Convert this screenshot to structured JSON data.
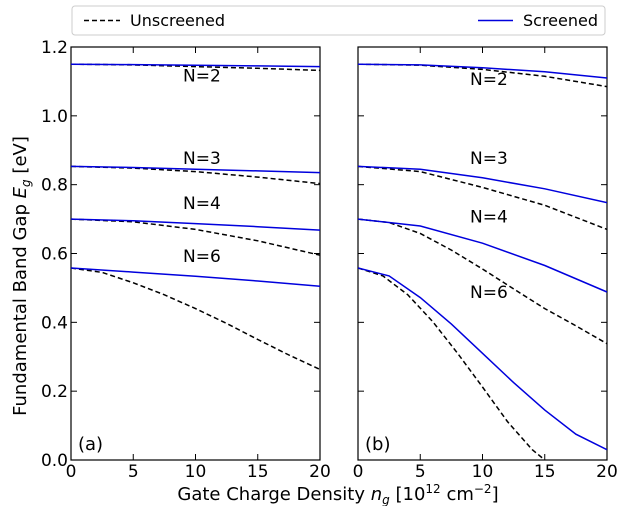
{
  "chart_data": {
    "type": "line",
    "ylabel": "Fundamental Band Gap",
    "ylabel_symbol": "E",
    "ylabel_symbol_sub": "g",
    "ylabel_unit": "[eV]",
    "xlabel": "Gate Charge Density",
    "xlabel_symbol": "n",
    "xlabel_symbol_sub": "g",
    "xlabel_unit_open": "[10",
    "xlabel_unit_exp": "12",
    "xlabel_unit_mid": "cm",
    "xlabel_unit_exp2": "−2",
    "xlabel_unit_close": "]",
    "xlim": [
      0,
      20
    ],
    "ylim": [
      0.0,
      1.2
    ],
    "xticks": [
      0,
      5,
      10,
      15,
      20
    ],
    "xtick_labels": [
      "0",
      "5",
      "10",
      "15",
      "20"
    ],
    "yticks": [
      0.0,
      0.2,
      0.4,
      0.6,
      0.8,
      1.0,
      1.2
    ],
    "ytick_labels": [
      "0.0",
      "0.2",
      "0.4",
      "0.6",
      "0.8",
      "1.0",
      "1.2"
    ],
    "legend": {
      "position": "top",
      "entries": [
        {
          "label": "Unscreened",
          "style": "dashed",
          "color": "#000000"
        },
        {
          "label": "Screened",
          "style": "solid",
          "color": "#0000dd"
        }
      ]
    },
    "panels": [
      {
        "label": "(a)",
        "curves": [
          {
            "name": "N=2",
            "label_at": [
              9.0,
              1.1
            ],
            "series": [
              {
                "name": "Unscreened",
                "x": [
                  0,
                  5,
                  10,
                  15,
                  20
                ],
                "y": [
                  1.15,
                  1.148,
                  1.143,
                  1.138,
                  1.132
                ]
              },
              {
                "name": "Screened",
                "x": [
                  0,
                  5,
                  10,
                  15,
                  20
                ],
                "y": [
                  1.15,
                  1.149,
                  1.147,
                  1.145,
                  1.143
                ]
              }
            ]
          },
          {
            "name": "N=3",
            "label_at": [
              9.0,
              0.86
            ],
            "series": [
              {
                "name": "Unscreened",
                "x": [
                  0,
                  5,
                  10,
                  15,
                  20
                ],
                "y": [
                  0.853,
                  0.848,
                  0.838,
                  0.822,
                  0.803
                ]
              },
              {
                "name": "Screened",
                "x": [
                  0,
                  5,
                  10,
                  15,
                  20
                ],
                "y": [
                  0.853,
                  0.85,
                  0.845,
                  0.84,
                  0.835
                ]
              }
            ]
          },
          {
            "name": "N=4",
            "label_at": [
              9.0,
              0.73
            ],
            "series": [
              {
                "name": "Unscreened",
                "x": [
                  0,
                  5,
                  10,
                  15,
                  20
                ],
                "y": [
                  0.7,
                  0.692,
                  0.67,
                  0.637,
                  0.595
                ]
              },
              {
                "name": "Screened",
                "x": [
                  0,
                  5,
                  10,
                  15,
                  20
                ],
                "y": [
                  0.7,
                  0.695,
                  0.687,
                  0.678,
                  0.668
                ]
              }
            ]
          },
          {
            "name": "N=6",
            "label_at": [
              9.0,
              0.575
            ],
            "series": [
              {
                "name": "Unscreened",
                "x": [
                  0,
                  2.5,
                  5,
                  7.5,
                  10,
                  12.5,
                  15,
                  17.5,
                  20
                ],
                "y": [
                  0.558,
                  0.545,
                  0.515,
                  0.48,
                  0.44,
                  0.397,
                  0.35,
                  0.305,
                  0.263
                ]
              },
              {
                "name": "Screened",
                "x": [
                  0,
                  5,
                  10,
                  15,
                  20
                ],
                "y": [
                  0.558,
                  0.546,
                  0.534,
                  0.52,
                  0.505
                ]
              }
            ]
          }
        ]
      },
      {
        "label": "(b)",
        "curves": [
          {
            "name": "N=2",
            "label_at": [
              9.0,
              1.09
            ],
            "series": [
              {
                "name": "Unscreened",
                "x": [
                  0,
                  5,
                  10,
                  15,
                  20
                ],
                "y": [
                  1.15,
                  1.147,
                  1.135,
                  1.115,
                  1.085
                ]
              },
              {
                "name": "Screened",
                "x": [
                  0,
                  5,
                  10,
                  15,
                  20
                ],
                "y": [
                  1.15,
                  1.148,
                  1.14,
                  1.128,
                  1.11
                ]
              }
            ]
          },
          {
            "name": "N=3",
            "label_at": [
              9.0,
              0.86
            ],
            "series": [
              {
                "name": "Unscreened",
                "x": [
                  0,
                  5,
                  10,
                  15,
                  20
                ],
                "y": [
                  0.853,
                  0.838,
                  0.792,
                  0.74,
                  0.67
                ]
              },
              {
                "name": "Screened",
                "x": [
                  0,
                  5,
                  10,
                  15,
                  20
                ],
                "y": [
                  0.853,
                  0.845,
                  0.82,
                  0.788,
                  0.748
                ]
              }
            ]
          },
          {
            "name": "N=4",
            "label_at": [
              9.0,
              0.69
            ],
            "series": [
              {
                "name": "Unscreened",
                "x": [
                  0,
                  2.5,
                  5,
                  7.5,
                  10,
                  12.5,
                  15,
                  17.5,
                  20
                ],
                "y": [
                  0.7,
                  0.69,
                  0.658,
                  0.61,
                  0.555,
                  0.497,
                  0.44,
                  0.39,
                  0.338
                ]
              },
              {
                "name": "Screened",
                "x": [
                  0,
                  5,
                  10,
                  15,
                  20
                ],
                "y": [
                  0.7,
                  0.68,
                  0.63,
                  0.565,
                  0.488
                ]
              }
            ]
          },
          {
            "name": "N=6",
            "label_at": [
              9.0,
              0.47
            ],
            "series": [
              {
                "name": "Unscreened",
                "x": [
                  0,
                  2,
                  4,
                  6,
                  8,
                  10,
                  12,
                  14,
                  15
                ],
                "y": [
                  0.558,
                  0.535,
                  0.48,
                  0.402,
                  0.31,
                  0.212,
                  0.112,
                  0.03,
                  0.0
                ]
              },
              {
                "name": "Screened",
                "x": [
                  0,
                  2.5,
                  5,
                  7.5,
                  10,
                  12.5,
                  15,
                  17.5,
                  20
                ],
                "y": [
                  0.558,
                  0.535,
                  0.472,
                  0.395,
                  0.31,
                  0.225,
                  0.145,
                  0.075,
                  0.03
                ]
              }
            ]
          }
        ]
      }
    ]
  }
}
